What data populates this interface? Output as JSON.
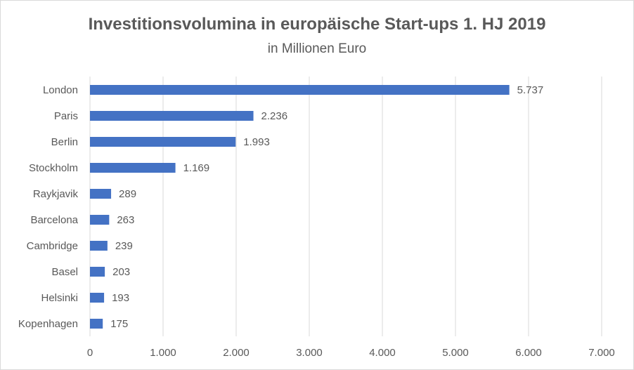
{
  "title": "Investitionsvolumina in europäische Start-ups 1. HJ 2019",
  "subtitle": "in Millionen Euro",
  "chart_data": {
    "type": "bar",
    "orientation": "horizontal",
    "categories": [
      "London",
      "Paris",
      "Berlin",
      "Stockholm",
      "Raykjavik",
      "Barcelona",
      "Cambridge",
      "Basel",
      "Helsinki",
      "Kopenhagen"
    ],
    "values": [
      5737,
      2236,
      1993,
      1169,
      289,
      263,
      239,
      203,
      193,
      175
    ],
    "data_labels": [
      "5.737",
      "2.236",
      "1.993",
      "1.169",
      "289",
      "263",
      "239",
      "203",
      "193",
      "175"
    ],
    "xlim": [
      0,
      7000
    ],
    "x_ticks": [
      0,
      1000,
      2000,
      3000,
      4000,
      5000,
      6000,
      7000
    ],
    "x_tick_labels": [
      "0",
      "1.000",
      "2.000",
      "3.000",
      "4.000",
      "5.000",
      "6.000",
      "7.000"
    ],
    "grid": true,
    "bar_color": "#4472c4",
    "grid_color": "#d9d9d9",
    "text_color": "#595959"
  }
}
